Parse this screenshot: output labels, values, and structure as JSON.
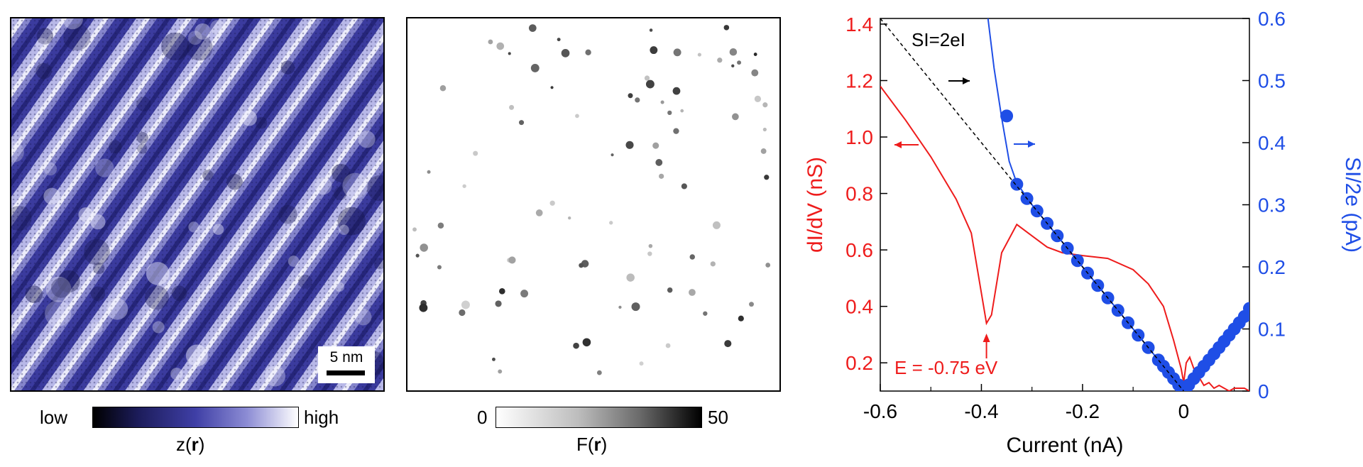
{
  "topography": {
    "scalebar_label": "5 nm",
    "colorbar_low": "low",
    "colorbar_high": "high",
    "map_label": "z(r)",
    "colors": [
      "#000000",
      "#3f3fa6",
      "#ffffff"
    ]
  },
  "fano_map": {
    "colorbar_min": "0",
    "colorbar_max": "50",
    "map_label": "F(r)",
    "colors": [
      "#ffffff",
      "#000000"
    ]
  },
  "chart_data": {
    "type": "line",
    "xlabel": "Current (nA)",
    "ylabel_left": "dI/dV (nS)",
    "ylabel_right": "SI/2e (pA)",
    "xlim": [
      -0.6,
      0.13
    ],
    "ylim_left": [
      0.1,
      1.42
    ],
    "ylim_right": [
      0,
      0.6
    ],
    "x_ticks": [
      "-0.6",
      "-0.4",
      "-0.2",
      "0"
    ],
    "x_tick_values": [
      -0.6,
      -0.4,
      -0.2,
      0
    ],
    "y_left_ticks": [
      "0.2",
      "0.4",
      "0.6",
      "0.8",
      "1.0",
      "1.2",
      "1.4"
    ],
    "y_left_tick_values": [
      0.2,
      0.4,
      0.6,
      0.8,
      1.0,
      1.2,
      1.4
    ],
    "y_right_ticks": [
      "0",
      "0.1",
      "0.2",
      "0.3",
      "0.4",
      "0.5",
      "0.6"
    ],
    "y_right_tick_values": [
      0,
      0.1,
      0.2,
      0.3,
      0.4,
      0.5,
      0.6
    ],
    "left_color": "#ee1c1c",
    "right_color": "#1f4ee6",
    "annotations": {
      "reference_line": "SI=2eI",
      "energy": "E = -0.75 eV"
    },
    "series": [
      {
        "axis": "left",
        "color": "#ee1c1c",
        "points": [
          [
            -0.6,
            1.18
          ],
          [
            -0.55,
            1.06
          ],
          [
            -0.5,
            0.93
          ],
          [
            -0.45,
            0.78
          ],
          [
            -0.42,
            0.66
          ],
          [
            -0.39,
            0.34
          ],
          [
            -0.38,
            0.37
          ],
          [
            -0.36,
            0.59
          ],
          [
            -0.33,
            0.69
          ],
          [
            -0.3,
            0.65
          ],
          [
            -0.27,
            0.61
          ],
          [
            -0.24,
            0.59
          ],
          [
            -0.2,
            0.58
          ],
          [
            -0.15,
            0.57
          ],
          [
            -0.1,
            0.53
          ],
          [
            -0.07,
            0.48
          ],
          [
            -0.04,
            0.4
          ],
          [
            -0.02,
            0.28
          ],
          [
            -0.005,
            0.18
          ],
          [
            0.0,
            0.13
          ],
          [
            0.005,
            0.2
          ],
          [
            0.012,
            0.22
          ],
          [
            0.02,
            0.18
          ],
          [
            0.03,
            0.15
          ],
          [
            0.04,
            0.12
          ],
          [
            0.05,
            0.13
          ],
          [
            0.06,
            0.11
          ],
          [
            0.07,
            0.12
          ],
          [
            0.08,
            0.11
          ],
          [
            0.09,
            0.1
          ],
          [
            0.1,
            0.11
          ],
          [
            0.12,
            0.11
          ],
          [
            0.13,
            0.1
          ]
        ]
      },
      {
        "axis": "right",
        "color": "#1f4ee6",
        "line": [
          [
            -0.39,
            0.62
          ],
          [
            -0.375,
            0.52
          ],
          [
            -0.36,
            0.44
          ],
          [
            -0.345,
            0.37
          ],
          [
            -0.33,
            0.335
          ],
          [
            -0.3,
            0.3
          ],
          [
            -0.25,
            0.25
          ],
          [
            -0.2,
            0.2
          ],
          [
            -0.15,
            0.15
          ],
          [
            -0.1,
            0.1
          ],
          [
            -0.05,
            0.05
          ],
          [
            0,
            0
          ],
          [
            0.05,
            0.05
          ],
          [
            0.1,
            0.1
          ],
          [
            0.13,
            0.13
          ]
        ],
        "markers": [
          [
            -0.35,
            0.443
          ],
          [
            -0.33,
            0.333
          ],
          [
            -0.31,
            0.31
          ],
          [
            -0.29,
            0.29
          ],
          [
            -0.27,
            0.27
          ],
          [
            -0.25,
            0.25
          ],
          [
            -0.23,
            0.23
          ],
          [
            -0.21,
            0.21
          ],
          [
            -0.19,
            0.19
          ],
          [
            -0.17,
            0.17
          ],
          [
            -0.15,
            0.15
          ],
          [
            -0.13,
            0.13
          ],
          [
            -0.11,
            0.11
          ],
          [
            -0.09,
            0.09
          ],
          [
            -0.07,
            0.07
          ],
          [
            -0.05,
            0.05
          ],
          [
            -0.04,
            0.04
          ],
          [
            -0.03,
            0.03
          ],
          [
            -0.02,
            0.02
          ],
          [
            -0.01,
            0.01
          ],
          [
            -0.005,
            0.005
          ],
          [
            0.0,
            0.0
          ],
          [
            0.005,
            0.005
          ],
          [
            0.01,
            0.01
          ],
          [
            0.02,
            0.02
          ],
          [
            0.03,
            0.03
          ],
          [
            0.04,
            0.04
          ],
          [
            0.05,
            0.05
          ],
          [
            0.06,
            0.06
          ],
          [
            0.07,
            0.07
          ],
          [
            0.08,
            0.08
          ],
          [
            0.09,
            0.09
          ],
          [
            0.1,
            0.1
          ],
          [
            0.11,
            0.11
          ],
          [
            0.12,
            0.12
          ],
          [
            0.13,
            0.133
          ]
        ]
      },
      {
        "axis": "right",
        "style": "dashed",
        "color": "#000000",
        "points": [
          [
            -0.6,
            0.6
          ],
          [
            0,
            0
          ]
        ]
      }
    ]
  }
}
